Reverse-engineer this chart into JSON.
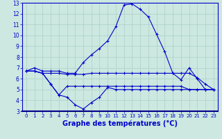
{
  "xlabel": "Graphe des températures (°C)",
  "hours": [
    0,
    1,
    2,
    3,
    4,
    5,
    6,
    7,
    8,
    9,
    10,
    11,
    12,
    13,
    14,
    15,
    16,
    17,
    18,
    19,
    20,
    21,
    22,
    23
  ],
  "line_max": [
    6.7,
    7.0,
    6.7,
    6.7,
    6.7,
    6.5,
    6.5,
    7.5,
    8.2,
    8.8,
    9.5,
    10.8,
    12.8,
    12.9,
    12.4,
    11.7,
    10.1,
    8.5,
    6.5,
    5.9,
    7.0,
    6.0,
    5.0,
    5.0
  ],
  "line_mid": [
    6.7,
    6.7,
    6.5,
    6.5,
    6.5,
    6.4,
    6.4,
    6.4,
    6.5,
    6.5,
    6.5,
    6.5,
    6.5,
    6.5,
    6.5,
    6.5,
    6.5,
    6.5,
    6.5,
    6.5,
    6.5,
    6.1,
    5.5,
    5.0
  ],
  "line_min": [
    6.7,
    6.7,
    6.5,
    5.5,
    4.5,
    5.3,
    5.3,
    5.3,
    5.3,
    5.3,
    5.3,
    5.3,
    5.3,
    5.3,
    5.3,
    5.3,
    5.3,
    5.3,
    5.3,
    5.3,
    5.0,
    5.0,
    5.0,
    5.0
  ],
  "line_bot": [
    6.7,
    6.7,
    6.5,
    5.5,
    4.5,
    4.3,
    3.6,
    3.2,
    3.8,
    4.3,
    5.2,
    5.0,
    5.0,
    5.0,
    5.0,
    5.0,
    5.0,
    5.0,
    5.0,
    5.0,
    5.0,
    5.0,
    5.0,
    5.0
  ],
  "line_color": "#0000cc",
  "bg_color": "#cce8e0",
  "grid_color": "#aacfc8",
  "ylim": [
    3,
    13
  ],
  "yticks": [
    3,
    4,
    5,
    6,
    7,
    8,
    9,
    10,
    11,
    12,
    13
  ],
  "xticks": [
    0,
    1,
    2,
    3,
    4,
    5,
    6,
    7,
    8,
    9,
    10,
    11,
    12,
    13,
    14,
    15,
    16,
    17,
    18,
    19,
    20,
    21,
    22,
    23
  ]
}
